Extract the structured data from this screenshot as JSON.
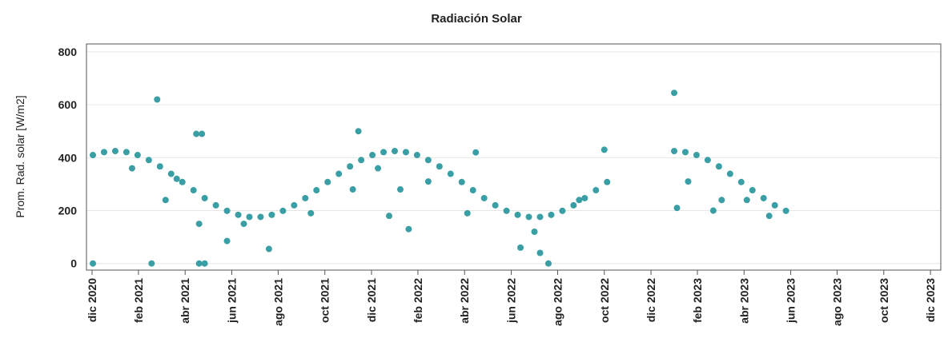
{
  "chart_data": {
    "type": "scatter",
    "title": "Radiación Solar",
    "y_label": "Prom. Rad. solar [W/m2]",
    "color": "#3a9ea5",
    "grid": true,
    "x": [
      2020.92,
      2020.96,
      2021.0,
      2021.04,
      2021.08,
      2021.12,
      2021.16,
      2021.2,
      2021.24,
      2021.28,
      2021.32,
      2021.36,
      2021.4,
      2021.44,
      2021.48,
      2021.52,
      2021.56,
      2021.6,
      2021.64,
      2021.68,
      2021.72,
      2021.76,
      2021.8,
      2021.84,
      2021.88,
      2021.92,
      2021.96,
      2022.0,
      2022.04,
      2022.08,
      2022.12,
      2022.16,
      2022.2,
      2022.24,
      2022.28,
      2022.32,
      2022.36,
      2022.4,
      2022.44,
      2022.48,
      2022.52,
      2022.56,
      2022.6,
      2022.64,
      2022.68,
      2022.72,
      2022.76,
      2023.0,
      2023.04,
      2023.08,
      2023.12,
      2023.16,
      2023.2,
      2023.24,
      2023.28,
      2023.32,
      2023.36,
      2023.4,
      2020.92,
      2021.13,
      2021.3,
      2021.32,
      2022.55,
      2021.15,
      2021.29,
      2021.31,
      2021.87,
      2022.29,
      2022.75,
      2023.0,
      2021.4,
      2021.55,
      2021.18,
      2021.85,
      2022.05,
      2022.45,
      2022.52,
      2021.3,
      2022.12,
      2021.98,
      2023.01,
      2023.05,
      2023.14,
      2023.17,
      2021.06,
      2021.22,
      2021.46,
      2021.7,
      2021.94,
      2022.02,
      2022.26,
      2022.5,
      2022.66,
      2023.26,
      2023.34
    ],
    "values": [
      410,
      421,
      425,
      421,
      410,
      391,
      367,
      339,
      308,
      277,
      247,
      220,
      199,
      184,
      176,
      176,
      184,
      199,
      220,
      247,
      277,
      308,
      339,
      367,
      391,
      410,
      421,
      425,
      421,
      410,
      391,
      367,
      339,
      308,
      277,
      247,
      220,
      199,
      184,
      176,
      176,
      184,
      199,
      220,
      247,
      277,
      308,
      425,
      421,
      410,
      391,
      367,
      339,
      308,
      277,
      247,
      220,
      199,
      0,
      0,
      0,
      0,
      0,
      620,
      490,
      490,
      500,
      420,
      430,
      645,
      85,
      55,
      240,
      280,
      130,
      60,
      40,
      150,
      310,
      180,
      210,
      310,
      200,
      240,
      360,
      320,
      150,
      190,
      360,
      280,
      190,
      120,
      240,
      240,
      180
    ],
    "xlim": [
      2020.897,
      2023.954
    ],
    "xticks": [
      {
        "value": 2020.917,
        "label": "dic 2020"
      },
      {
        "value": 2021.083,
        "label": "feb 2021"
      },
      {
        "value": 2021.25,
        "label": "abr 2021"
      },
      {
        "value": 2021.417,
        "label": "jun 2021"
      },
      {
        "value": 2021.583,
        "label": "ago 2021"
      },
      {
        "value": 2021.75,
        "label": "oct 2021"
      },
      {
        "value": 2021.917,
        "label": "dic 2021"
      },
      {
        "value": 2022.083,
        "label": "feb 2022"
      },
      {
        "value": 2022.25,
        "label": "abr 2022"
      },
      {
        "value": 2022.417,
        "label": "jun 2022"
      },
      {
        "value": 2022.583,
        "label": "ago 2022"
      },
      {
        "value": 2022.75,
        "label": "oct 2022"
      },
      {
        "value": 2022.917,
        "label": "dic 2022"
      },
      {
        "value": 2023.083,
        "label": "feb 2023"
      },
      {
        "value": 2023.25,
        "label": "abr 2023"
      },
      {
        "value": 2023.417,
        "label": "jun 2023"
      },
      {
        "value": 2023.583,
        "label": "ago 2023"
      },
      {
        "value": 2023.75,
        "label": "oct 2023"
      },
      {
        "value": 2023.917,
        "label": "dic 2023"
      }
    ],
    "ylim": [
      -25,
      830
    ],
    "yticks": [
      0,
      200,
      400,
      600,
      800
    ]
  }
}
